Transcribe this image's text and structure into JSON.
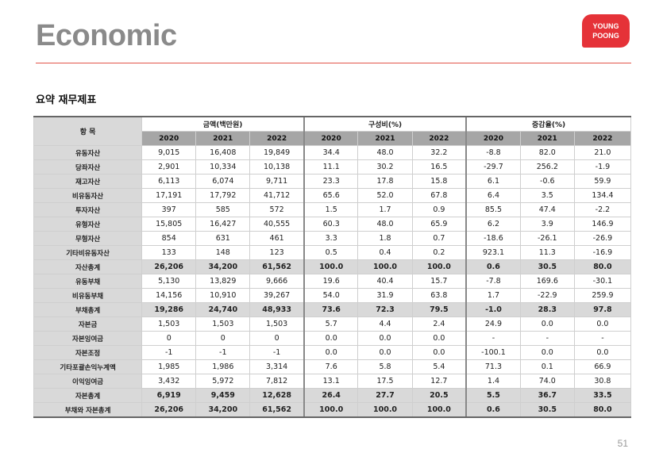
{
  "header": {
    "title": "Economic",
    "logo_line1": "YOUNG",
    "logo_line2": "POONG"
  },
  "subtitle": "요약 재무제표",
  "table": {
    "item_header": "항 목",
    "groups": [
      "금액(백만원)",
      "구성비(%)",
      "증감율(%)"
    ],
    "years": [
      "2020",
      "2021",
      "2022",
      "2020",
      "2021",
      "2022",
      "2020",
      "2021",
      "2022"
    ],
    "rows": [
      {
        "label": "유동자산",
        "bold": false,
        "values": [
          "9,015",
          "16,408",
          "19,849",
          "34.4",
          "48.0",
          "32.2",
          "-8.8",
          "82.0",
          "21.0"
        ]
      },
      {
        "label": "당좌자산",
        "bold": false,
        "values": [
          "2,901",
          "10,334",
          "10,138",
          "11.1",
          "30.2",
          "16.5",
          "-29.7",
          "256.2",
          "-1.9"
        ]
      },
      {
        "label": "재고자산",
        "bold": false,
        "values": [
          "6,113",
          "6,074",
          "9,711",
          "23.3",
          "17.8",
          "15.8",
          "6.1",
          "-0.6",
          "59.9"
        ]
      },
      {
        "label": "비유동자산",
        "bold": false,
        "values": [
          "17,191",
          "17,792",
          "41,712",
          "65.6",
          "52.0",
          "67.8",
          "6.4",
          "3.5",
          "134.4"
        ]
      },
      {
        "label": "투자자산",
        "bold": false,
        "values": [
          "397",
          "585",
          "572",
          "1.5",
          "1.7",
          "0.9",
          "85.5",
          "47.4",
          "-2.2"
        ]
      },
      {
        "label": "유형자산",
        "bold": false,
        "values": [
          "15,805",
          "16,427",
          "40,555",
          "60.3",
          "48.0",
          "65.9",
          "6.2",
          "3.9",
          "146.9"
        ]
      },
      {
        "label": "무형자산",
        "bold": false,
        "values": [
          "854",
          "631",
          "461",
          "3.3",
          "1.8",
          "0.7",
          "-18.6",
          "-26.1",
          "-26.9"
        ]
      },
      {
        "label": "기타비유동자산",
        "bold": false,
        "values": [
          "133",
          "148",
          "123",
          "0.5",
          "0.4",
          "0.2",
          "923.1",
          "11.3",
          "-16.9"
        ]
      },
      {
        "label": "자산총계",
        "bold": true,
        "values": [
          "26,206",
          "34,200",
          "61,562",
          "100.0",
          "100.0",
          "100.0",
          "0.6",
          "30.5",
          "80.0"
        ]
      },
      {
        "label": "유동부채",
        "bold": false,
        "values": [
          "5,130",
          "13,829",
          "9,666",
          "19.6",
          "40.4",
          "15.7",
          "-7.8",
          "169.6",
          "-30.1"
        ]
      },
      {
        "label": "비유동부채",
        "bold": false,
        "values": [
          "14,156",
          "10,910",
          "39,267",
          "54.0",
          "31.9",
          "63.8",
          "1.7",
          "-22.9",
          "259.9"
        ]
      },
      {
        "label": "부채총계",
        "bold": true,
        "values": [
          "19,286",
          "24,740",
          "48,933",
          "73.6",
          "72.3",
          "79.5",
          "-1.0",
          "28.3",
          "97.8"
        ]
      },
      {
        "label": "자본금",
        "bold": false,
        "values": [
          "1,503",
          "1,503",
          "1,503",
          "5.7",
          "4.4",
          "2.4",
          "24.9",
          "0.0",
          "0.0"
        ]
      },
      {
        "label": "자본잉여금",
        "bold": false,
        "values": [
          "0",
          "0",
          "0",
          "0.0",
          "0.0",
          "0.0",
          "-",
          "-",
          "-"
        ]
      },
      {
        "label": "자본조정",
        "bold": false,
        "values": [
          "-1",
          "-1",
          "-1",
          "0.0",
          "0.0",
          "0.0",
          "-100.1",
          "0.0",
          "0.0"
        ]
      },
      {
        "label": "기타포괄손익누계액",
        "bold": false,
        "values": [
          "1,985",
          "1,986",
          "3,314",
          "7.6",
          "5.8",
          "5.4",
          "71.3",
          "0.1",
          "66.9"
        ]
      },
      {
        "label": "이익잉여금",
        "bold": false,
        "values": [
          "3,432",
          "5,972",
          "7,812",
          "13.1",
          "17.5",
          "12.7",
          "1.4",
          "74.0",
          "30.8"
        ]
      },
      {
        "label": "자본총계",
        "bold": true,
        "values": [
          "6,919",
          "9,459",
          "12,628",
          "26.4",
          "27.7",
          "20.5",
          "5.5",
          "36.7",
          "33.5"
        ]
      },
      {
        "label": "부채와 자본총계",
        "bold": true,
        "values": [
          "26,206",
          "34,200",
          "61,562",
          "100.0",
          "100.0",
          "100.0",
          "0.6",
          "30.5",
          "80.0"
        ]
      }
    ]
  },
  "page_number": "51"
}
